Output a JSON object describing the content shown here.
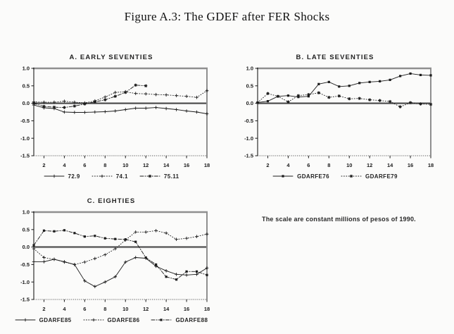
{
  "figure": {
    "title": "Figure A.3: The GDEF after FER Shocks",
    "note": "The scale are constant millions of pesos of 1990."
  },
  "colors": {
    "ink": "#1b1b1b",
    "zero_band": "#9c9c9c",
    "frame_gray": "#8f8f8f",
    "paper": "#fbfbfa"
  },
  "chart_data": [
    {
      "type": "line",
      "title": "A. EARLY SEVENTIES",
      "xlabel": "",
      "ylabel": "",
      "xlim": [
        1,
        18
      ],
      "ylim": [
        -1.5,
        1.0
      ],
      "xticks": [
        2,
        4,
        6,
        8,
        10,
        12,
        14,
        16,
        18
      ],
      "yticks": [
        1.0,
        0.5,
        0.0,
        -0.5,
        -1.0,
        -1.5
      ],
      "grid": false,
      "legend_position": "bottom",
      "x": [
        1,
        2,
        3,
        4,
        5,
        6,
        7,
        8,
        9,
        10,
        11,
        12,
        13,
        14,
        15,
        16,
        17,
        18
      ],
      "series": [
        {
          "name": "72.9",
          "style": "solid",
          "marker": "plus",
          "values": [
            -0.05,
            -0.13,
            -0.15,
            -0.25,
            -0.26,
            -0.26,
            -0.25,
            -0.24,
            -0.22,
            -0.18,
            -0.14,
            -0.14,
            -0.12,
            -0.15,
            -0.18,
            -0.22,
            -0.25,
            -0.3
          ]
        },
        {
          "name": "74.1",
          "style": "dotted",
          "marker": "plus",
          "values": [
            0.04,
            0.03,
            0.03,
            0.06,
            0.03,
            0.01,
            0.07,
            0.18,
            0.31,
            0.33,
            0.28,
            0.27,
            0.25,
            0.24,
            0.22,
            0.2,
            0.17,
            0.36
          ]
        },
        {
          "name": "75.11",
          "style": "dashdot",
          "marker": "star",
          "values": [
            0.0,
            -0.09,
            -0.11,
            -0.12,
            -0.08,
            -0.02,
            0.04,
            0.1,
            0.2,
            0.31,
            0.52,
            0.5,
            null,
            null,
            null,
            null,
            null,
            null
          ]
        }
      ]
    },
    {
      "type": "line",
      "title": "B. LATE SEVENTIES",
      "xlabel": "",
      "ylabel": "",
      "xlim": [
        1,
        18
      ],
      "ylim": [
        -1.5,
        1.0
      ],
      "xticks": [
        2,
        4,
        6,
        8,
        10,
        12,
        14,
        16,
        18
      ],
      "yticks": [
        1.0,
        0.5,
        0.0,
        -0.5,
        -1.0,
        -1.5
      ],
      "grid": false,
      "legend_position": "bottom",
      "x": [
        1,
        2,
        3,
        4,
        5,
        6,
        7,
        8,
        9,
        10,
        11,
        12,
        13,
        14,
        15,
        16,
        17,
        18
      ],
      "series": [
        {
          "name": "GDARFE76",
          "style": "solid",
          "marker": "square",
          "values": [
            0.02,
            0.06,
            0.2,
            0.22,
            0.18,
            0.2,
            0.55,
            0.61,
            0.48,
            0.5,
            0.58,
            0.61,
            0.63,
            0.67,
            0.78,
            0.85,
            0.81,
            0.8
          ]
        },
        {
          "name": "GDARFE79",
          "style": "dotted",
          "marker": "star",
          "values": [
            0.02,
            0.28,
            0.2,
            0.04,
            0.22,
            0.25,
            0.3,
            0.17,
            0.21,
            0.13,
            0.14,
            0.1,
            0.08,
            0.05,
            -0.1,
            0.02,
            -0.02,
            -0.03
          ]
        }
      ]
    },
    {
      "type": "line",
      "title": "C. EIGHTIES",
      "xlabel": "",
      "ylabel": "",
      "xlim": [
        1,
        18
      ],
      "ylim": [
        -1.5,
        1.0
      ],
      "xticks": [
        2,
        4,
        6,
        8,
        10,
        12,
        14,
        16,
        18
      ],
      "yticks": [
        1.0,
        0.5,
        0.0,
        -0.5,
        -1.0,
        -1.5
      ],
      "grid": false,
      "legend_position": "bottom",
      "x": [
        1,
        2,
        3,
        4,
        5,
        6,
        7,
        8,
        9,
        10,
        11,
        12,
        13,
        14,
        15,
        16,
        17,
        18
      ],
      "series": [
        {
          "name": "GDARFE85",
          "style": "solid",
          "marker": "plus",
          "values": [
            -0.42,
            -0.42,
            -0.35,
            -0.42,
            -0.5,
            -0.97,
            -1.13,
            -1.0,
            -0.85,
            -0.43,
            -0.3,
            -0.32,
            -0.55,
            -0.68,
            -0.78,
            -0.8,
            -0.78,
            -0.6
          ]
        },
        {
          "name": "GDARFE86",
          "style": "dotted",
          "marker": "plus",
          "values": [
            -0.05,
            -0.3,
            -0.35,
            -0.43,
            -0.5,
            -0.43,
            -0.33,
            -0.22,
            -0.05,
            0.2,
            0.43,
            0.43,
            0.47,
            0.4,
            0.22,
            0.25,
            0.3,
            0.37
          ]
        },
        {
          "name": "GDARFE88",
          "style": "dashdot",
          "marker": "square",
          "values": [
            0.05,
            0.47,
            0.45,
            0.48,
            0.4,
            0.3,
            0.32,
            0.25,
            0.23,
            0.22,
            0.15,
            -0.3,
            -0.5,
            -0.85,
            -0.93,
            -0.7,
            -0.7,
            -0.8
          ]
        }
      ]
    }
  ]
}
